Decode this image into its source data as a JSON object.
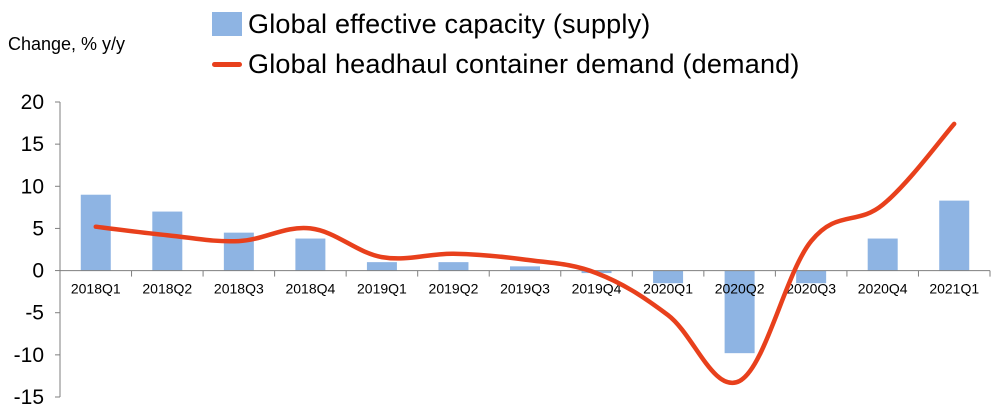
{
  "chart_data": {
    "type": "bar+line",
    "ylabel": "Change, % y/y",
    "ylim": [
      -15,
      20
    ],
    "yticks": [
      20,
      15,
      10,
      5,
      0,
      -5,
      -10,
      -15
    ],
    "categories": [
      "2018Q1",
      "2018Q2",
      "2018Q3",
      "2018Q4",
      "2019Q1",
      "2019Q2",
      "2019Q3",
      "2019Q4",
      "2020Q1",
      "2020Q2",
      "2020Q3",
      "2020Q4",
      "2021Q1"
    ],
    "series": [
      {
        "name": "Global effective capacity (supply)",
        "type": "bar",
        "color": "#8EB4E3",
        "values": [
          9.0,
          7.0,
          4.5,
          3.8,
          1.0,
          1.0,
          0.5,
          -0.3,
          -1.5,
          -9.8,
          -1.5,
          3.8,
          8.3
        ]
      },
      {
        "name": "Global headhaul container demand (demand)",
        "type": "line",
        "color": "#E8401C",
        "values": [
          5.2,
          4.2,
          3.5,
          5.0,
          1.6,
          2.0,
          1.3,
          -0.3,
          -5.3,
          -13.1,
          3.5,
          7.8,
          17.4
        ]
      }
    ],
    "grid": false,
    "legend_position": "top"
  }
}
